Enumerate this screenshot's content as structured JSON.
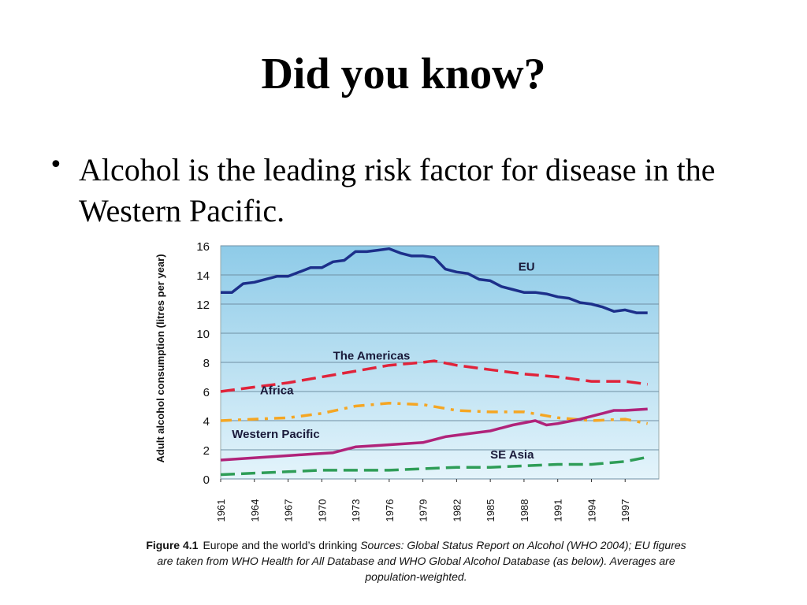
{
  "slide": {
    "title": "Did you know?",
    "bullet": "Alcohol is the leading risk factor for disease in the Western Pacific."
  },
  "caption": {
    "figure": "Figure 4.1",
    "text1": "Europe and the world’s drinking",
    "text2": "Sources: Global Status Report on Alcohol (WHO 2004); EU figures are taken from WHO Health for All Database and WHO Global Alcohol Database (as below). Averages are population-weighted."
  },
  "chart_data": {
    "type": "line",
    "ylabel": "Adult alcohol consumption (litres per year)",
    "xlabel": "",
    "ylim": [
      0,
      16
    ],
    "yticks": [
      0,
      2,
      4,
      6,
      8,
      10,
      12,
      14,
      16
    ],
    "xlim": [
      1961,
      2000
    ],
    "xticks": [
      1961,
      1964,
      1967,
      1970,
      1973,
      1976,
      1979,
      1982,
      1985,
      1988,
      1991,
      1994,
      1997
    ],
    "grid": true,
    "background": [
      "#8ecbe8",
      "#e4f4fb"
    ],
    "series": [
      {
        "name": "EU",
        "color": "#1c2f8a",
        "dash": "solid",
        "x": [
          1961,
          1962,
          1963,
          1964,
          1965,
          1966,
          1967,
          1968,
          1969,
          1970,
          1971,
          1972,
          1973,
          1974,
          1975,
          1976,
          1977,
          1978,
          1979,
          1980,
          1981,
          1982,
          1983,
          1984,
          1985,
          1986,
          1987,
          1988,
          1989,
          1990,
          1991,
          1992,
          1993,
          1994,
          1995,
          1996,
          1997,
          1998,
          1999
        ],
        "values": [
          12.8,
          12.8,
          13.4,
          13.5,
          13.7,
          13.9,
          13.9,
          14.2,
          14.5,
          14.5,
          14.9,
          15.0,
          15.6,
          15.6,
          15.7,
          15.8,
          15.5,
          15.3,
          15.3,
          15.2,
          14.4,
          14.2,
          14.1,
          13.7,
          13.6,
          13.2,
          13.0,
          12.8,
          12.8,
          12.7,
          12.5,
          12.4,
          12.1,
          12.0,
          11.8,
          11.5,
          11.6,
          11.4,
          11.4
        ]
      },
      {
        "name": "The Americas",
        "color": "#e0233a",
        "dash": "long",
        "x": [
          1961,
          1964,
          1967,
          1970,
          1973,
          1976,
          1979,
          1980,
          1982,
          1985,
          1988,
          1991,
          1994,
          1997,
          1999
        ],
        "values": [
          6.0,
          6.3,
          6.6,
          7.0,
          7.4,
          7.8,
          8.0,
          8.1,
          7.8,
          7.5,
          7.2,
          7.0,
          6.7,
          6.7,
          6.5
        ]
      },
      {
        "name": "Africa",
        "color": "#f5a623",
        "dash": "dashdot",
        "x": [
          1961,
          1964,
          1967,
          1970,
          1973,
          1976,
          1979,
          1982,
          1985,
          1988,
          1991,
          1994,
          1997,
          1999
        ],
        "values": [
          4.0,
          4.1,
          4.2,
          4.5,
          5.0,
          5.2,
          5.1,
          4.7,
          4.6,
          4.6,
          4.2,
          4.0,
          4.1,
          3.8
        ]
      },
      {
        "name": "Western Pacific",
        "color": "#b0237a",
        "dash": "solid",
        "x": [
          1961,
          1963,
          1965,
          1967,
          1969,
          1971,
          1973,
          1975,
          1977,
          1979,
          1981,
          1983,
          1985,
          1987,
          1989,
          1990,
          1991,
          1993,
          1995,
          1996,
          1997,
          1999
        ],
        "values": [
          1.3,
          1.4,
          1.5,
          1.6,
          1.7,
          1.8,
          2.2,
          2.3,
          2.4,
          2.5,
          2.9,
          3.1,
          3.3,
          3.7,
          4.0,
          3.7,
          3.8,
          4.1,
          4.5,
          4.7,
          4.7,
          4.8
        ]
      },
      {
        "name": "SE Asia",
        "color": "#2e9d57",
        "dash": "long",
        "x": [
          1961,
          1964,
          1967,
          1970,
          1973,
          1976,
          1979,
          1982,
          1985,
          1988,
          1991,
          1994,
          1997,
          1999
        ],
        "values": [
          0.3,
          0.4,
          0.5,
          0.6,
          0.6,
          0.6,
          0.7,
          0.8,
          0.8,
          0.9,
          1.0,
          1.0,
          1.2,
          1.5
        ]
      }
    ],
    "annotations": [
      {
        "text": "EU",
        "x": 1987.5,
        "y": 14.3
      },
      {
        "text": "The Americas",
        "x": 1971,
        "y": 8.2
      },
      {
        "text": "Africa",
        "x": 1964.5,
        "y": 5.8
      },
      {
        "text": "Western Pacific",
        "x": 1962,
        "y": 2.8
      },
      {
        "text": "SE Asia",
        "x": 1985,
        "y": 1.4
      }
    ]
  }
}
